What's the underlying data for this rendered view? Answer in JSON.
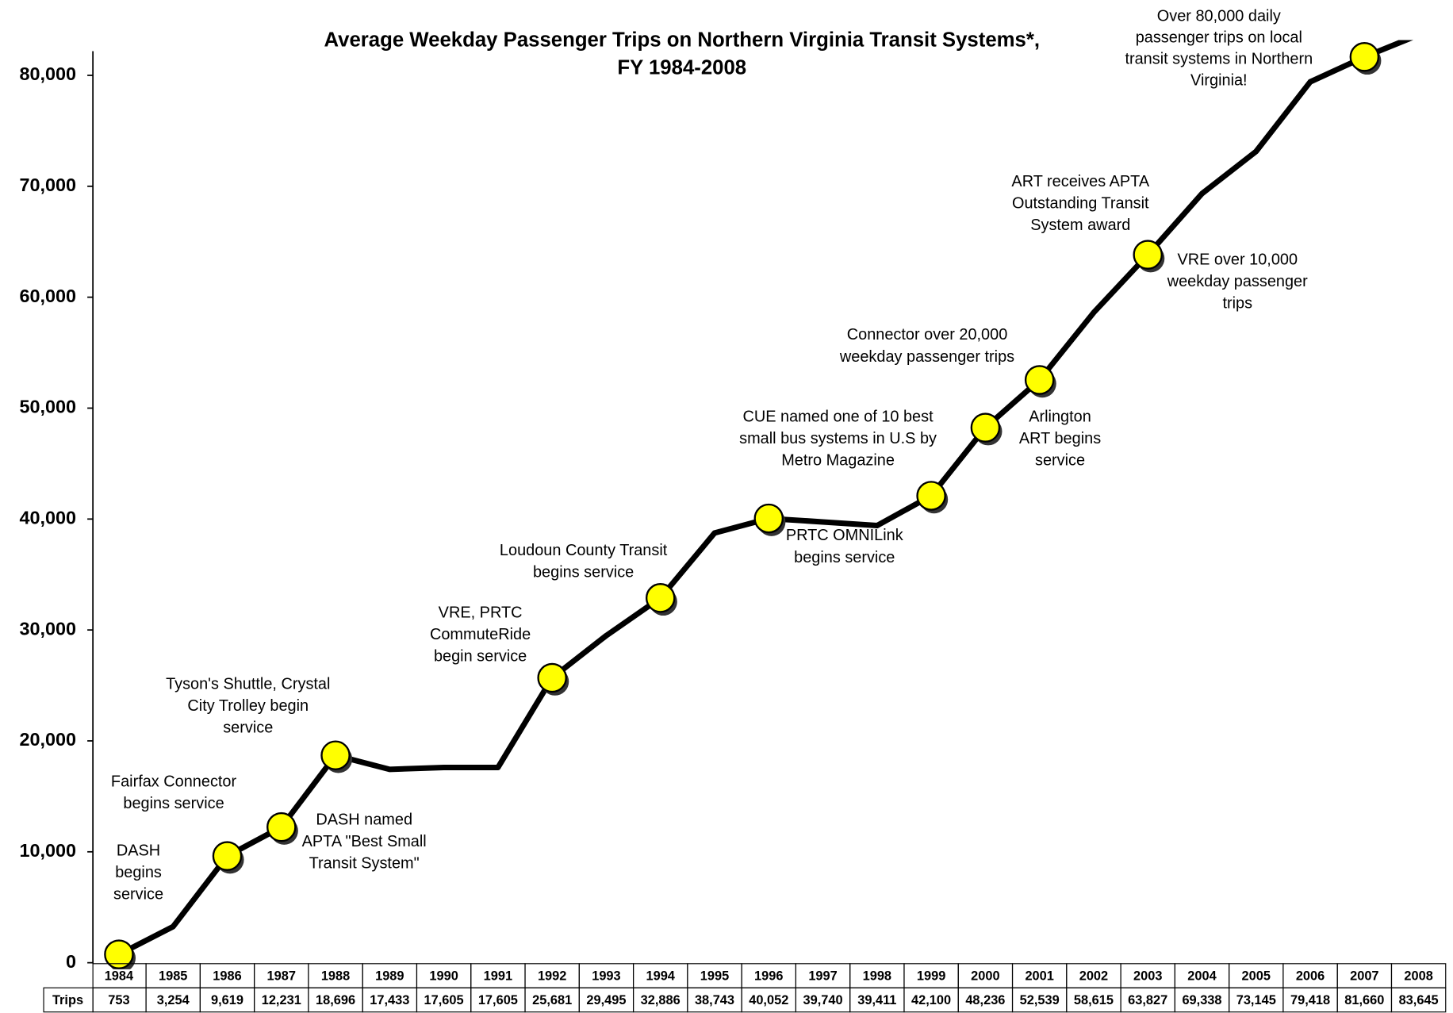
{
  "chart_data": {
    "type": "line",
    "title": [
      "Average Weekday Passenger Trips on Northern Virginia Transit Systems*,",
      "FY 1984-2008"
    ],
    "categories": [
      "1984",
      "1985",
      "1986",
      "1987",
      "1988",
      "1989",
      "1990",
      "1991",
      "1992",
      "1993",
      "1994",
      "1995",
      "1996",
      "1997",
      "1998",
      "1999",
      "2000",
      "2001",
      "2002",
      "2003",
      "2004",
      "2005",
      "2006",
      "2007",
      "2008"
    ],
    "table_label": "Trips",
    "values": [
      753,
      3254,
      9619,
      12231,
      18696,
      17433,
      17605,
      17605,
      25681,
      29495,
      32886,
      38743,
      40052,
      39740,
      39411,
      42100,
      48236,
      52539,
      58615,
      63827,
      69338,
      73145,
      79418,
      81660,
      83645
    ],
    "value_labels": [
      "753",
      "3,254",
      "9,619",
      "12,231",
      "18,696",
      "17,433",
      "17,605",
      "17,605",
      "25,681",
      "29,495",
      "32,886",
      "38,743",
      "40,052",
      "39,740",
      "39,411",
      "42,100",
      "48,236",
      "52,539",
      "58,615",
      "63,827",
      "69,338",
      "73,145",
      "79,418",
      "81,660",
      "83,645"
    ],
    "color": "#000000",
    "marker_color": "#ffff00",
    "ylim": [
      0,
      83200
    ],
    "yticks": [
      0,
      {
        "value": 10000,
        "label": "10,000"
      },
      {
        "value": 20000,
        "label": "20,000"
      },
      {
        "value": 30000,
        "label": "30,000"
      },
      {
        "value": 40000,
        "label": "40,000"
      },
      {
        "value": 50000,
        "label": "50,000"
      },
      {
        "value": 60000,
        "label": "60,000"
      },
      {
        "value": 70000,
        "label": "70,000"
      },
      {
        "value": 80000,
        "label": "80,000"
      }
    ],
    "annotations": [
      {
        "x": "1984",
        "lines": [
          "DASH",
          "begins",
          "service"
        ]
      },
      {
        "x": "1986",
        "lines": [
          "Fairfax Connector",
          "begins service"
        ]
      },
      {
        "x": "1988",
        "lines": [
          "Tyson's Shuttle, Crystal",
          "City Trolley begin",
          "service"
        ]
      },
      {
        "x": "1987",
        "lines": [
          "DASH named",
          "APTA \"Best Small",
          "Transit System\""
        ]
      },
      {
        "x": "1992",
        "lines": [
          "VRE, PRTC",
          "CommuteRide",
          "begin service"
        ]
      },
      {
        "x": "1994",
        "lines": [
          "Loudoun County Transit",
          "begins service"
        ]
      },
      {
        "x": "1996",
        "lines": [
          "PRTC OMNILink",
          "begins service"
        ]
      },
      {
        "x": "1999",
        "lines": [
          "CUE named one of 10 best",
          "small bus systems in U.S by",
          "Metro Magazine"
        ]
      },
      {
        "x": "2000",
        "lines": [
          "Arlington",
          "ART begins",
          "service"
        ]
      },
      {
        "x": "2001",
        "lines": [
          "Connector over 20,000",
          "weekday passenger trips"
        ]
      },
      {
        "x": "2003",
        "lines": [
          "ART receives APTA",
          "Outstanding Transit",
          "System award"
        ]
      },
      {
        "x": "2003",
        "lines": [
          "VRE over 10,000",
          "weekday passenger",
          "trips"
        ]
      },
      {
        "x": "2007",
        "lines": [
          "Over 80,000 daily",
          "passenger trips on local",
          "transit systems in Northern",
          "Virginia!"
        ]
      }
    ]
  }
}
